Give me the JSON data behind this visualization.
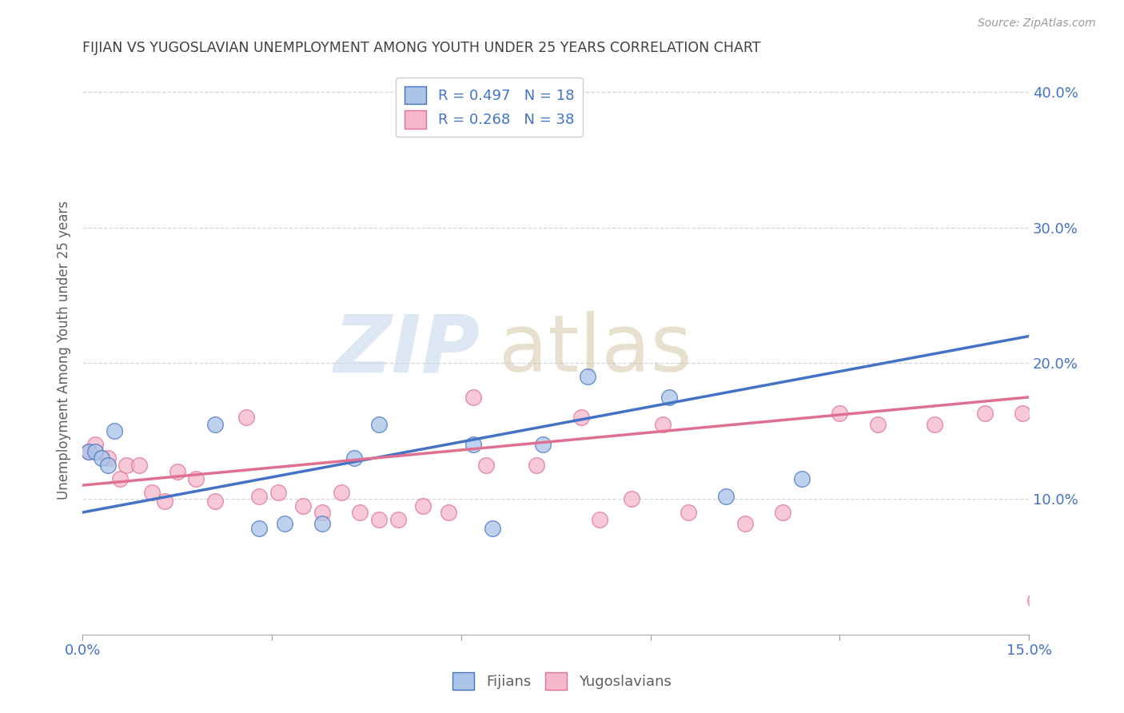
{
  "title": "FIJIAN VS YUGOSLAVIAN UNEMPLOYMENT AMONG YOUTH UNDER 25 YEARS CORRELATION CHART",
  "source": "Source: ZipAtlas.com",
  "ylabel": "Unemployment Among Youth under 25 years",
  "xlim": [
    0.0,
    0.15
  ],
  "ylim": [
    0.0,
    0.42
  ],
  "yticks": [
    0.1,
    0.2,
    0.3,
    0.4
  ],
  "ytick_labels": [
    "10.0%",
    "20.0%",
    "30.0%",
    "40.0%"
  ],
  "xtick_positions": [
    0.0,
    0.03,
    0.06,
    0.09,
    0.12,
    0.15
  ],
  "xtick_labels": [
    "0.0%",
    "",
    "",
    "",
    "",
    "15.0%"
  ],
  "fijian_color": "#aac4e8",
  "yugoslav_color": "#f5b8cb",
  "fijian_line_color": "#4472c4",
  "yugoslav_line_color": "#e07090",
  "legend_fijian_label": "R = 0.497   N = 18",
  "legend_yugoslav_label": "R = 0.268   N = 38",
  "fijian_R": 0.497,
  "fijian_N": 18,
  "yugoslav_R": 0.268,
  "yugoslav_N": 38,
  "background_color": "#ffffff",
  "grid_color": "#cccccc",
  "tick_color": "#4472c4",
  "title_color": "#404040",
  "axis_label_color": "#606060",
  "fijian_x": [
    0.001,
    0.002,
    0.003,
    0.004,
    0.005,
    0.021,
    0.028,
    0.032,
    0.038,
    0.043,
    0.047,
    0.062,
    0.065,
    0.073,
    0.08,
    0.093,
    0.102,
    0.114
  ],
  "fijian_y": [
    0.135,
    0.135,
    0.13,
    0.125,
    0.15,
    0.155,
    0.078,
    0.082,
    0.082,
    0.13,
    0.155,
    0.14,
    0.078,
    0.14,
    0.19,
    0.175,
    0.102,
    0.115
  ],
  "yugoslav_x": [
    0.001,
    0.002,
    0.004,
    0.006,
    0.007,
    0.009,
    0.011,
    0.013,
    0.015,
    0.018,
    0.021,
    0.026,
    0.028,
    0.031,
    0.035,
    0.038,
    0.041,
    0.044,
    0.047,
    0.05,
    0.054,
    0.058,
    0.062,
    0.064,
    0.072,
    0.079,
    0.082,
    0.087,
    0.092,
    0.096,
    0.105,
    0.111,
    0.12,
    0.126,
    0.135,
    0.143,
    0.149,
    0.151
  ],
  "yugoslav_y": [
    0.135,
    0.14,
    0.13,
    0.115,
    0.125,
    0.125,
    0.105,
    0.098,
    0.12,
    0.115,
    0.098,
    0.16,
    0.102,
    0.105,
    0.095,
    0.09,
    0.105,
    0.09,
    0.085,
    0.085,
    0.095,
    0.09,
    0.175,
    0.125,
    0.125,
    0.16,
    0.085,
    0.1,
    0.155,
    0.09,
    0.082,
    0.09,
    0.163,
    0.155,
    0.155,
    0.163,
    0.163,
    0.025
  ],
  "fijian_line_x0": 0.0,
  "fijian_line_y0": 0.09,
  "fijian_line_x1": 0.15,
  "fijian_line_y1": 0.22,
  "yugoslav_line_x0": 0.0,
  "yugoslav_line_y0": 0.11,
  "yugoslav_line_x1": 0.15,
  "yugoslav_line_y1": 0.175
}
